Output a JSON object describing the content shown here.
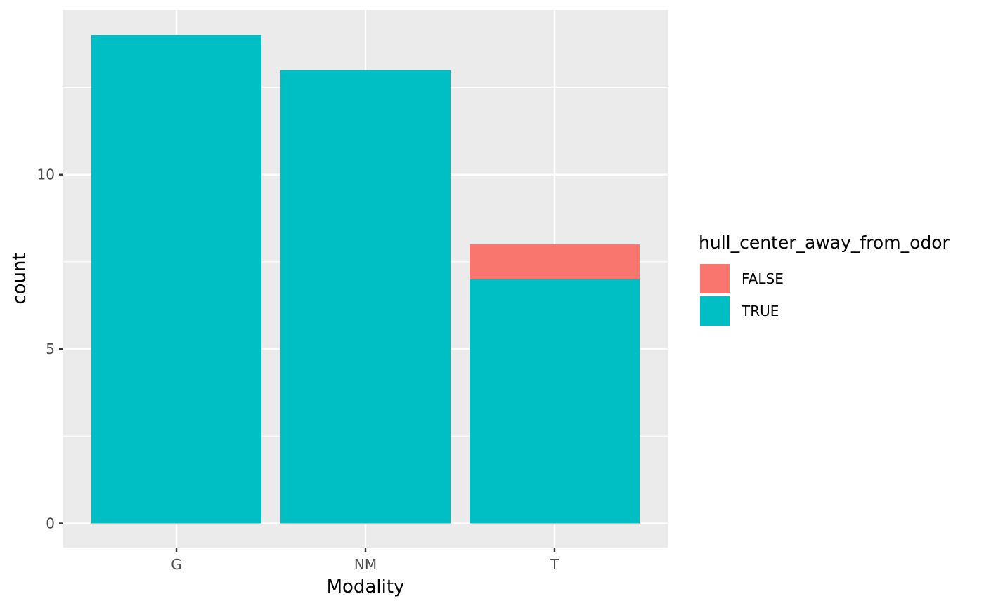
{
  "chart_data": {
    "type": "bar",
    "stacked": true,
    "categories": [
      "G",
      "NM",
      "T"
    ],
    "series": [
      {
        "name": "FALSE",
        "color": "#F8766D",
        "values": [
          0,
          0,
          1
        ]
      },
      {
        "name": "TRUE",
        "color": "#00BFC4",
        "values": [
          14,
          13,
          7
        ]
      }
    ],
    "xlabel": "Modality",
    "ylabel": "count",
    "ylim": [
      0,
      14
    ],
    "yticks": [
      0,
      5,
      10
    ],
    "grid": true,
    "legend": {
      "title": "hull_center_away_from_odor",
      "position": "right"
    },
    "panel_background": "#EBEBEB",
    "grid_color": "#FFFFFF"
  }
}
